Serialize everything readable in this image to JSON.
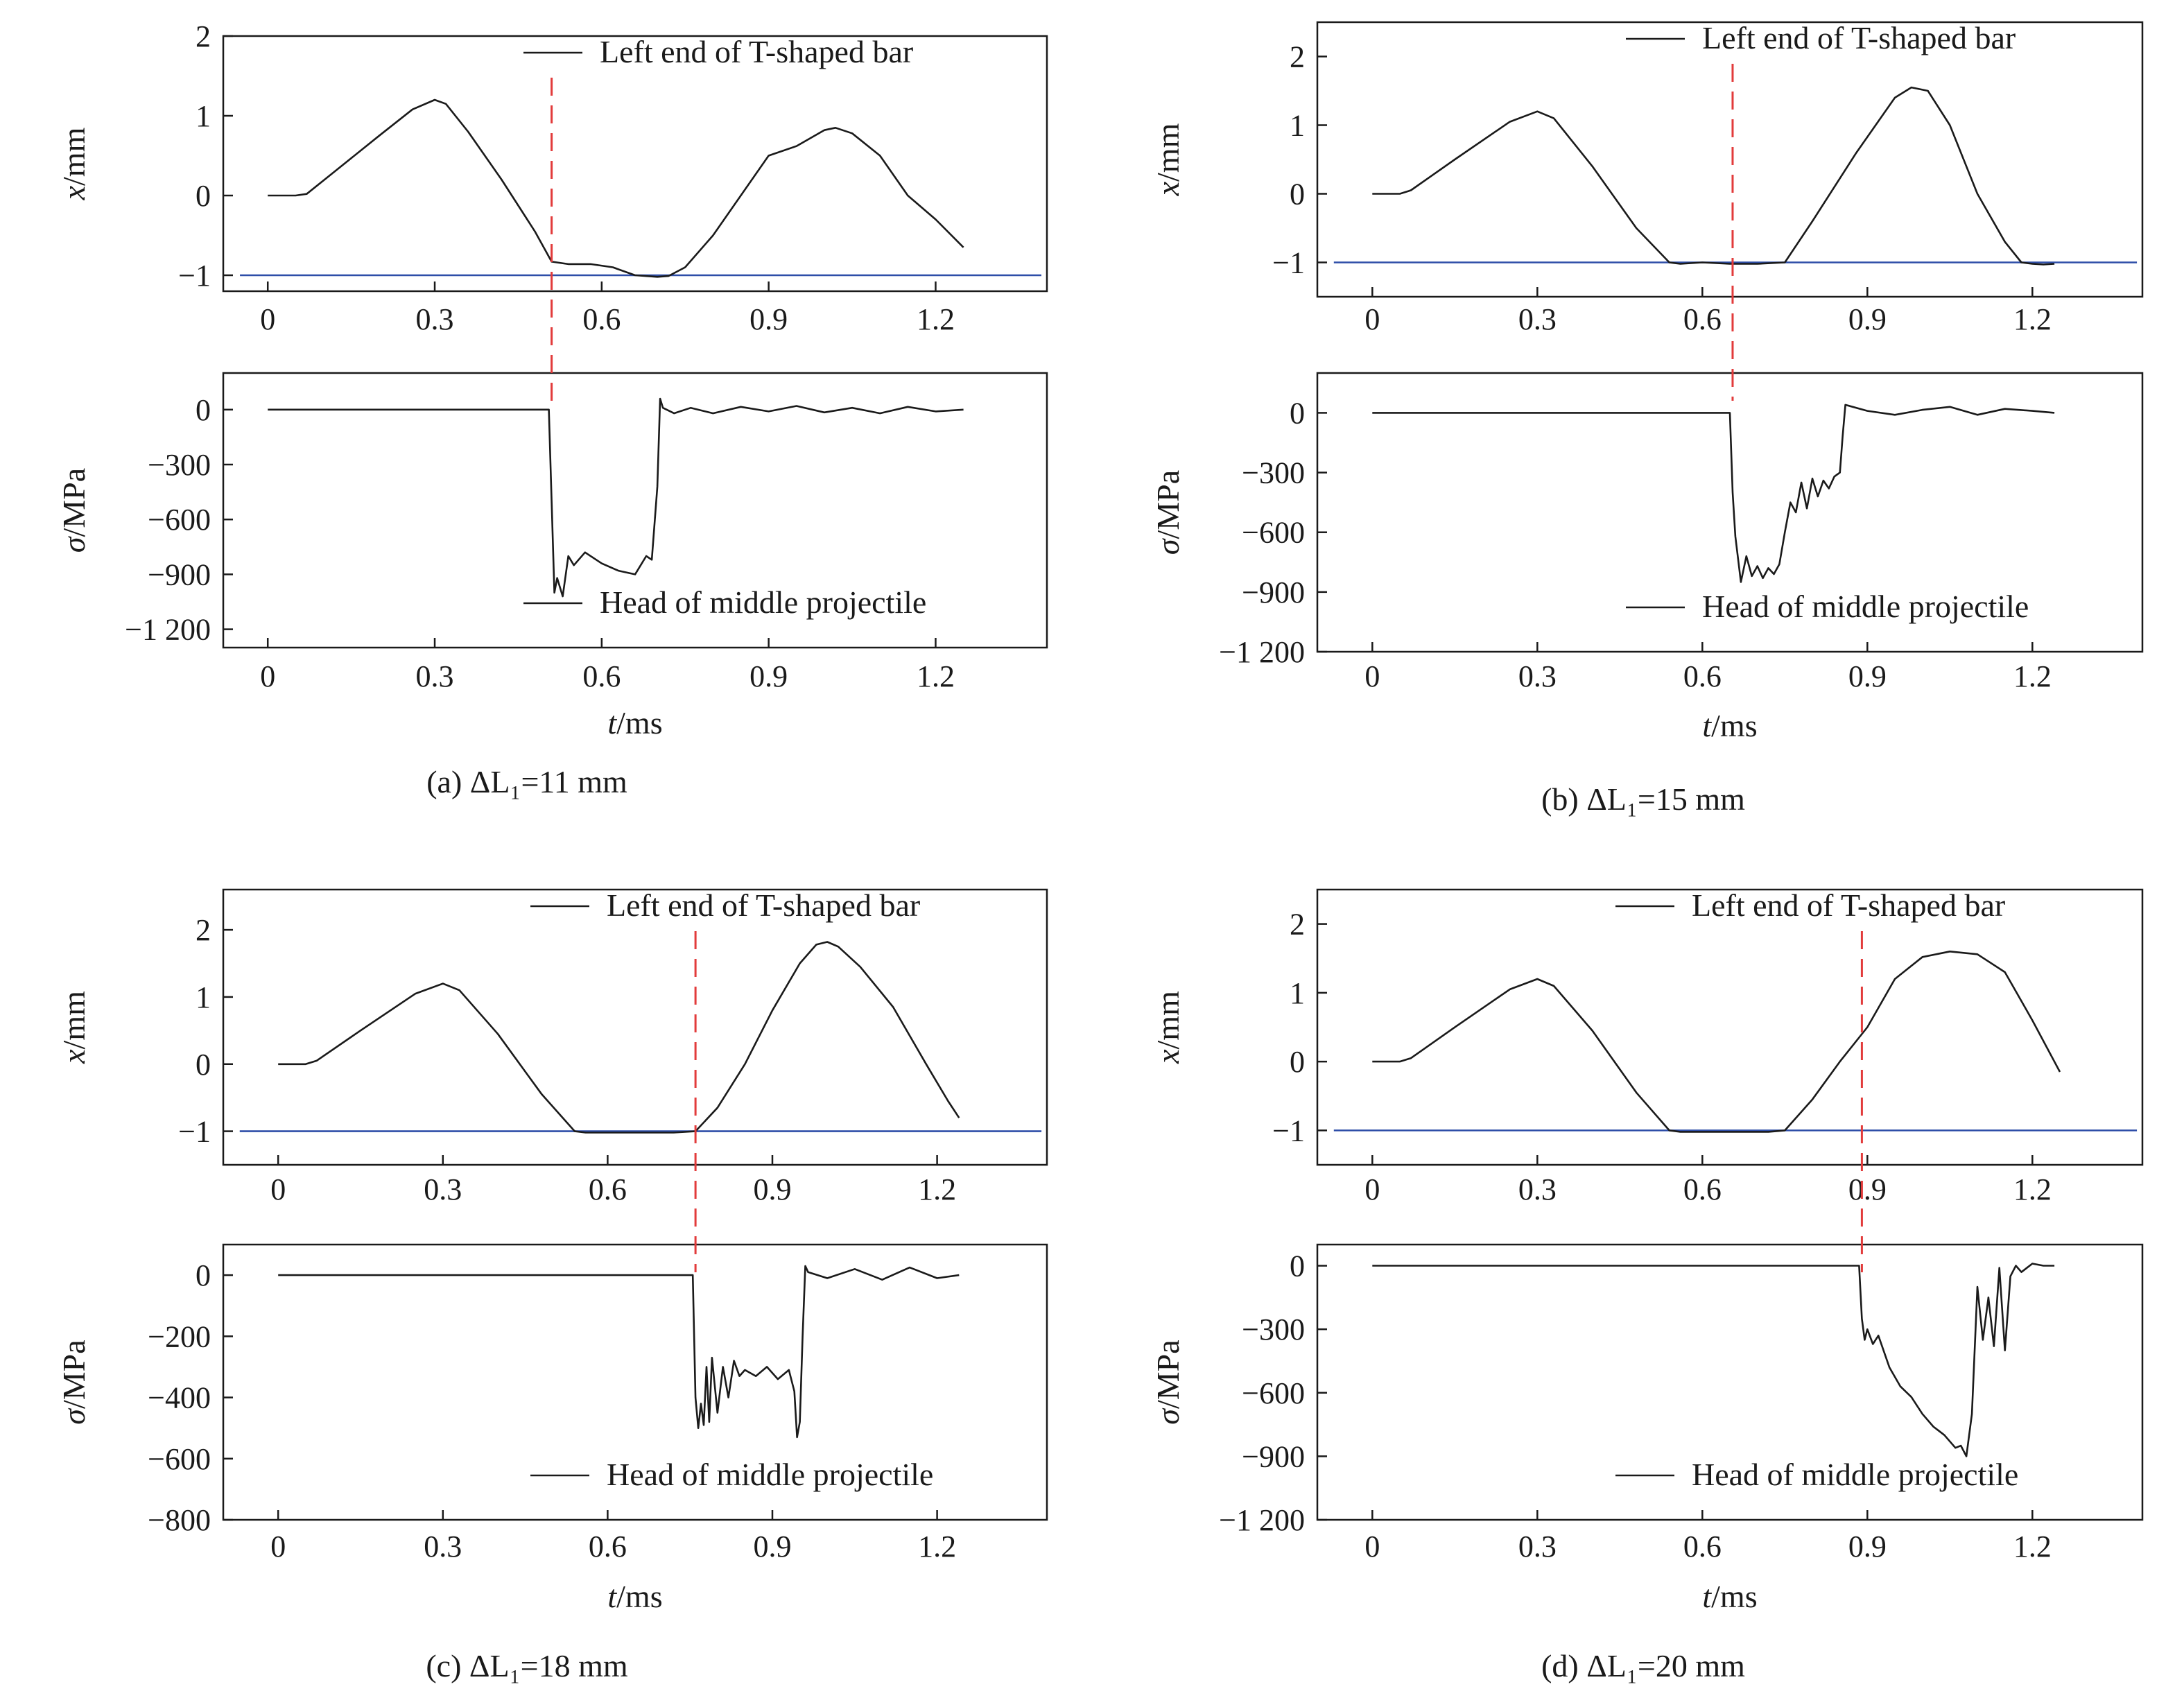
{
  "chart_data": [
    {
      "type": "line",
      "caption": "(a) ΔL₁=11 mm",
      "marker_t": 0.51,
      "x_panel": {
        "ylabel": "x/mm",
        "xlim": [
          -0.08,
          1.4
        ],
        "ylim": [
          -1.2,
          2
        ],
        "yticks": [
          2,
          1,
          0,
          -1
        ],
        "ytick_labels": [
          "2",
          "1",
          "0",
          "−1"
        ],
        "xticks": [
          0,
          0.3,
          0.6,
          0.9,
          1.2
        ],
        "xtick_labels": [
          "0",
          "0.3",
          "0.6",
          "0.9",
          "1.2"
        ],
        "legend": "Left end of T-shaped bar",
        "floor": -1.0,
        "series": [
          {
            "name": "Left end of T-shaped bar",
            "x": [
              0,
              0.05,
              0.07,
              0.12,
              0.2,
              0.26,
              0.3,
              0.32,
              0.36,
              0.42,
              0.48,
              0.51,
              0.54,
              0.58,
              0.62,
              0.66,
              0.7,
              0.72,
              0.75,
              0.8,
              0.85,
              0.9,
              0.95,
              1.0,
              1.02,
              1.05,
              1.1,
              1.15,
              1.2,
              1.25
            ],
            "y": [
              0,
              0,
              0.02,
              0.3,
              0.75,
              1.08,
              1.2,
              1.15,
              0.8,
              0.2,
              -0.45,
              -0.83,
              -0.86,
              -0.86,
              -0.9,
              -1.0,
              -1.02,
              -1.01,
              -0.9,
              -0.5,
              0.0,
              0.5,
              0.62,
              0.82,
              0.85,
              0.78,
              0.5,
              0.0,
              -0.3,
              -0.65
            ]
          }
        ]
      },
      "s_panel": {
        "ylabel": "σ/MPa",
        "xlabel": "t/ms",
        "xlim": [
          -0.08,
          1.4
        ],
        "ylim": [
          -1300,
          200
        ],
        "yticks": [
          0,
          -300,
          -600,
          -900,
          -1200
        ],
        "ytick_labels": [
          "0",
          "−300",
          "−600",
          "−900",
          "−1 200"
        ],
        "xticks": [
          0,
          0.3,
          0.6,
          0.9,
          1.2
        ],
        "xtick_labels": [
          "0",
          "0.3",
          "0.6",
          "0.9",
          "1.2"
        ],
        "legend": "Head of middle projectile",
        "series": [
          {
            "name": "Head of middle projectile",
            "x": [
              0,
              0.505,
              0.51,
              0.515,
              0.52,
              0.53,
              0.54,
              0.55,
              0.57,
              0.6,
              0.63,
              0.66,
              0.68,
              0.69,
              0.7,
              0.705,
              0.71,
              0.73,
              0.76,
              0.8,
              0.85,
              0.9,
              0.95,
              1.0,
              1.05,
              1.1,
              1.15,
              1.2,
              1.25
            ],
            "y": [
              0,
              0,
              -500,
              -1000,
              -920,
              -1020,
              -800,
              -850,
              -780,
              -840,
              -880,
              -900,
              -800,
              -820,
              -420,
              60,
              10,
              -20,
              10,
              -20,
              15,
              -10,
              20,
              -15,
              10,
              -20,
              15,
              -10,
              0
            ]
          }
        ]
      }
    },
    {
      "type": "line",
      "caption": "(b) ΔL₁=15 mm",
      "marker_t": 0.655,
      "x_panel": {
        "ylabel": "x/mm",
        "xlim": [
          -0.1,
          1.4
        ],
        "ylim": [
          -1.5,
          2.5
        ],
        "yticks": [
          2,
          1,
          0,
          -1
        ],
        "ytick_labels": [
          "2",
          "1",
          "0",
          "−1"
        ],
        "xticks": [
          0,
          0.3,
          0.6,
          0.9,
          1.2
        ],
        "xtick_labels": [
          "0",
          "0.3",
          "0.6",
          "0.9",
          "1.2"
        ],
        "legend": "Left end of T-shaped bar",
        "floor": -1.0,
        "series": [
          {
            "name": "Left end of T-shaped bar",
            "x": [
              0,
              0.05,
              0.07,
              0.15,
              0.25,
              0.3,
              0.33,
              0.4,
              0.48,
              0.54,
              0.56,
              0.6,
              0.65,
              0.7,
              0.75,
              0.8,
              0.88,
              0.95,
              0.98,
              1.01,
              1.05,
              1.1,
              1.15,
              1.18,
              1.2,
              1.22,
              1.24
            ],
            "y": [
              0,
              0,
              0.05,
              0.5,
              1.05,
              1.2,
              1.1,
              0.4,
              -0.5,
              -1.0,
              -1.02,
              -1.0,
              -1.02,
              -1.02,
              -1.0,
              -0.4,
              0.6,
              1.4,
              1.55,
              1.5,
              1.0,
              0.0,
              -0.7,
              -1.0,
              -1.02,
              -1.03,
              -1.02
            ]
          }
        ]
      },
      "s_panel": {
        "ylabel": "σ/MPa",
        "xlabel": "t/ms",
        "xlim": [
          -0.1,
          1.4
        ],
        "ylim": [
          -1200,
          200
        ],
        "yticks": [
          0,
          -300,
          -600,
          -900,
          -1200
        ],
        "ytick_labels": [
          "0",
          "−300",
          "−600",
          "−900",
          "−1 200"
        ],
        "xticks": [
          0,
          0.3,
          0.6,
          0.9,
          1.2
        ],
        "xtick_labels": [
          "0",
          "0.3",
          "0.6",
          "0.9",
          "1.2"
        ],
        "legend": "Head of middle projectile",
        "series": [
          {
            "name": "Head of middle projectile",
            "x": [
              0,
              0.65,
              0.655,
              0.66,
              0.67,
              0.68,
              0.69,
              0.7,
              0.71,
              0.72,
              0.73,
              0.74,
              0.75,
              0.76,
              0.77,
              0.78,
              0.79,
              0.8,
              0.81,
              0.82,
              0.83,
              0.84,
              0.85,
              0.855,
              0.86,
              0.9,
              0.95,
              1.0,
              1.05,
              1.1,
              1.15,
              1.2,
              1.24
            ],
            "y": [
              0,
              0,
              -400,
              -620,
              -850,
              -720,
              -820,
              -770,
              -830,
              -780,
              -810,
              -760,
              -600,
              -450,
              -500,
              -350,
              -480,
              -330,
              -420,
              -340,
              -380,
              -320,
              -300,
              -120,
              40,
              10,
              -10,
              15,
              30,
              -10,
              20,
              10,
              0
            ]
          }
        ]
      }
    },
    {
      "type": "line",
      "caption": "(c) ΔL₁=18 mm",
      "marker_t": 0.76,
      "x_panel": {
        "ylabel": "x/mm",
        "xlim": [
          -0.1,
          1.4
        ],
        "ylim": [
          -1.5,
          2.6
        ],
        "yticks": [
          2,
          1,
          0,
          -1
        ],
        "ytick_labels": [
          "2",
          "1",
          "0",
          "−1"
        ],
        "xticks": [
          0,
          0.3,
          0.6,
          0.9,
          1.2
        ],
        "xtick_labels": [
          "0",
          "0.3",
          "0.6",
          "0.9",
          "1.2"
        ],
        "legend": "Left end of T-shaped bar",
        "floor": -1.0,
        "series": [
          {
            "name": "Left end of T-shaped bar",
            "x": [
              0,
              0.05,
              0.07,
              0.15,
              0.25,
              0.3,
              0.33,
              0.4,
              0.48,
              0.54,
              0.56,
              0.6,
              0.66,
              0.72,
              0.76,
              0.8,
              0.85,
              0.9,
              0.95,
              0.98,
              1.0,
              1.02,
              1.06,
              1.12,
              1.18,
              1.22,
              1.24
            ],
            "y": [
              0,
              0,
              0.05,
              0.5,
              1.05,
              1.2,
              1.1,
              0.45,
              -0.45,
              -1.0,
              -1.02,
              -1.02,
              -1.02,
              -1.02,
              -1.0,
              -0.65,
              0.0,
              0.8,
              1.5,
              1.78,
              1.82,
              1.75,
              1.45,
              0.85,
              0.0,
              -0.55,
              -0.8
            ]
          }
        ]
      },
      "s_panel": {
        "ylabel": "σ/MPa",
        "xlabel": "t/ms",
        "xlim": [
          -0.1,
          1.4
        ],
        "ylim": [
          -800,
          100
        ],
        "yticks": [
          0,
          -200,
          -400,
          -600,
          -800
        ],
        "ytick_labels": [
          "0",
          "−200",
          "−400",
          "−600",
          "−800"
        ],
        "xticks": [
          0,
          0.3,
          0.6,
          0.9,
          1.2
        ],
        "xtick_labels": [
          "0",
          "0.3",
          "0.6",
          "0.9",
          "1.2"
        ],
        "legend": "Head of middle projectile",
        "series": [
          {
            "name": "Head of middle projectile",
            "x": [
              0,
              0.755,
              0.76,
              0.765,
              0.77,
              0.775,
              0.78,
              0.785,
              0.79,
              0.8,
              0.81,
              0.82,
              0.83,
              0.84,
              0.85,
              0.87,
              0.89,
              0.91,
              0.93,
              0.94,
              0.945,
              0.95,
              0.955,
              0.96,
              0.965,
              1.0,
              1.05,
              1.1,
              1.15,
              1.2,
              1.24
            ],
            "y": [
              0,
              0,
              -400,
              -500,
              -420,
              -490,
              -300,
              -480,
              -270,
              -450,
              -300,
              -400,
              -280,
              -330,
              -310,
              -330,
              -300,
              -340,
              -310,
              -380,
              -530,
              -480,
              -200,
              30,
              10,
              -10,
              20,
              -15,
              25,
              -10,
              0
            ]
          }
        ]
      }
    },
    {
      "type": "line",
      "caption": "(d) ΔL₁=20 mm",
      "marker_t": 0.89,
      "x_panel": {
        "ylabel": "x/mm",
        "xlim": [
          -0.1,
          1.4
        ],
        "ylim": [
          -1.5,
          2.5
        ],
        "yticks": [
          2,
          1,
          0,
          -1
        ],
        "ytick_labels": [
          "2",
          "1",
          "0",
          "−1"
        ],
        "xticks": [
          0,
          0.3,
          0.6,
          0.9,
          1.2
        ],
        "xtick_labels": [
          "0",
          "0.3",
          "0.6",
          "0.9",
          "1.2"
        ],
        "legend": "Left end of T-shaped bar",
        "floor": -1.0,
        "series": [
          {
            "name": "Left end of T-shaped bar",
            "x": [
              0,
              0.05,
              0.07,
              0.15,
              0.25,
              0.3,
              0.33,
              0.4,
              0.48,
              0.54,
              0.56,
              0.6,
              0.66,
              0.72,
              0.75,
              0.8,
              0.85,
              0.9,
              0.95,
              1.0,
              1.05,
              1.1,
              1.15,
              1.2,
              1.25
            ],
            "y": [
              0,
              0,
              0.05,
              0.5,
              1.05,
              1.2,
              1.1,
              0.45,
              -0.45,
              -1.0,
              -1.02,
              -1.02,
              -1.02,
              -1.02,
              -1.0,
              -0.55,
              0.0,
              0.5,
              1.2,
              1.52,
              1.6,
              1.56,
              1.3,
              0.6,
              -0.15
            ]
          }
        ]
      },
      "s_panel": {
        "ylabel": "σ/MPa",
        "xlabel": "t/ms",
        "xlim": [
          -0.1,
          1.4
        ],
        "ylim": [
          -1200,
          100
        ],
        "yticks": [
          0,
          -300,
          -600,
          -900,
          -1200
        ],
        "ytick_labels": [
          "0",
          "−300",
          "−600",
          "−900",
          "−1 200"
        ],
        "xticks": [
          0,
          0.3,
          0.6,
          0.9,
          1.2
        ],
        "xtick_labels": [
          "0",
          "0.3",
          "0.6",
          "0.9",
          "1.2"
        ],
        "legend": "Head of middle projectile",
        "series": [
          {
            "name": "Head of middle projectile",
            "x": [
              0,
              0.885,
              0.89,
              0.895,
              0.9,
              0.91,
              0.92,
              0.94,
              0.96,
              0.98,
              1.0,
              1.02,
              1.04,
              1.06,
              1.07,
              1.08,
              1.09,
              1.1,
              1.11,
              1.12,
              1.13,
              1.14,
              1.15,
              1.16,
              1.17,
              1.18,
              1.2,
              1.22,
              1.24
            ],
            "y": [
              0,
              0,
              -250,
              -350,
              -300,
              -370,
              -330,
              -480,
              -570,
              -620,
              -700,
              -760,
              -800,
              -860,
              -850,
              -900,
              -700,
              -100,
              -350,
              -150,
              -380,
              -10,
              -400,
              -50,
              0,
              -30,
              10,
              0,
              0
            ]
          }
        ]
      }
    }
  ]
}
